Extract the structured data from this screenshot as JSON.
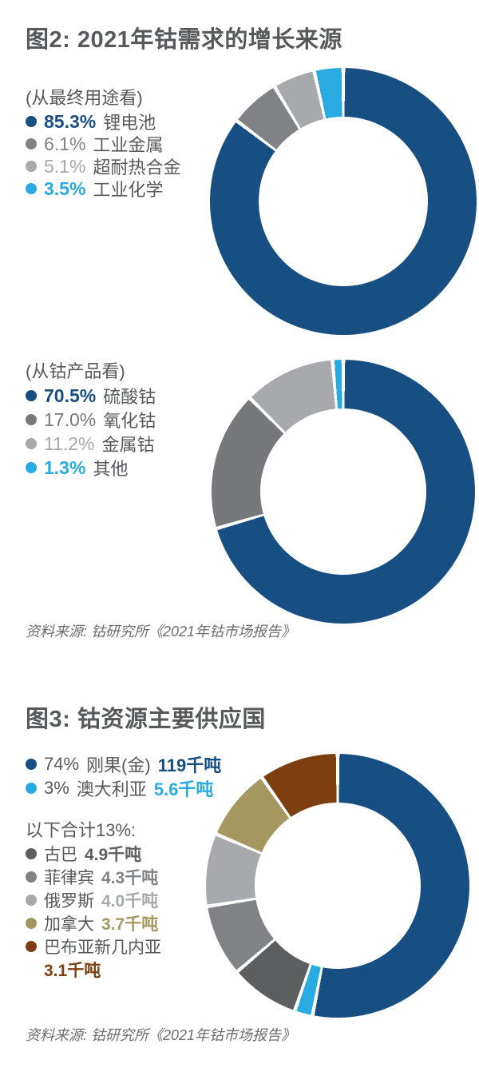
{
  "colors": {
    "background": "#ffffff",
    "title_text": "#58595b",
    "body_text": "#58595b",
    "source_text": "#6d6e71",
    "brand_blue": "#184f82",
    "brand_cyan": "#29abe2"
  },
  "fig2": {
    "title": "图2: 2021年钴需求的增长来源",
    "source": "资料来源: 钴研究所《2021年钴市场报告》"
  },
  "fig3": {
    "title": "图3: 钴资源主要供应国",
    "group_heading": "以下合计13%:",
    "source": "资料来源: 钴研究所《2021年钴市场报告》"
  },
  "chart_data": [
    {
      "type": "pie",
      "subtype": "donut",
      "heading": "(从最终用途看)",
      "unit": "%",
      "segments": [
        {
          "label": "锂电池",
          "value": 85.3,
          "value_label": "85.3%",
          "color": "#184f82"
        },
        {
          "label": "工业金属",
          "value": 6.1,
          "value_label": "6.1%",
          "color": "#808285"
        },
        {
          "label": "超耐热合金",
          "value": 5.1,
          "value_label": "5.1%",
          "color": "#a7a9ac"
        },
        {
          "label": "工业化学",
          "value": 3.5,
          "value_label": "3.5%",
          "color": "#29abe2"
        }
      ]
    },
    {
      "type": "pie",
      "subtype": "donut",
      "heading": "(从钴产品看)",
      "unit": "%",
      "segments": [
        {
          "label": "硫酸钴",
          "value": 70.5,
          "value_label": "70.5%",
          "color": "#184f82"
        },
        {
          "label": "氧化钴",
          "value": 17.0,
          "value_label": "17.0%",
          "color": "#77787b"
        },
        {
          "label": "金属钴",
          "value": 11.2,
          "value_label": "11.2%",
          "color": "#a7a9ac"
        },
        {
          "label": "其他",
          "value": 1.3,
          "value_label": "1.3%",
          "color": "#29abe2"
        }
      ]
    },
    {
      "type": "pie",
      "subtype": "donut",
      "unit": "千吨",
      "segments": [
        {
          "label": "刚果(金)",
          "share_label": "74%",
          "value": 119,
          "value_label": "119千吨",
          "color": "#184f82",
          "arc_deg": 191
        },
        {
          "label": "澳大利亚",
          "share_label": "3%",
          "value": 5.6,
          "value_label": "5.6千吨",
          "color": "#29abe2",
          "arc_deg": 8
        },
        {
          "label": "古巴",
          "value": 4.9,
          "value_label": "4.9千吨",
          "color": "#5d5e60",
          "arc_deg": 30.5
        },
        {
          "label": "菲律宾",
          "value": 4.3,
          "value_label": "4.3千吨",
          "color": "#808285",
          "arc_deg": 31.5
        },
        {
          "label": "俄罗斯",
          "value": 4.0,
          "value_label": "4.0千吨",
          "color": "#a7a9ac",
          "arc_deg": 32
        },
        {
          "label": "加拿大",
          "value": 3.7,
          "value_label": "3.7千吨",
          "color": "#a69660",
          "arc_deg": 32
        },
        {
          "label": "巴布亚新几内亚",
          "value": 3.1,
          "value_label": "3.1千吨",
          "color": "#7d3e10",
          "arc_deg": 35
        }
      ],
      "note": "arc angles follow the source graphic, which exaggerates the small segments"
    }
  ]
}
